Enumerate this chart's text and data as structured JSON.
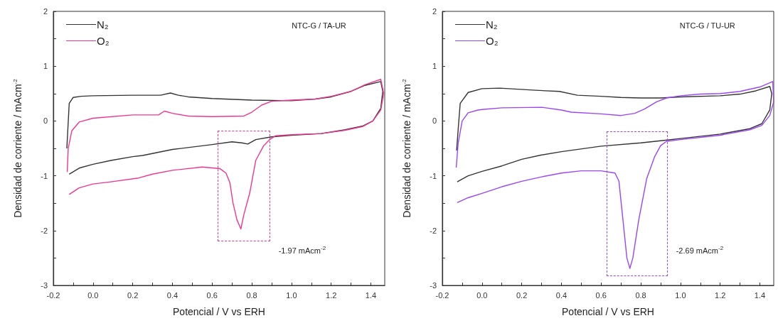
{
  "chart_data": [
    {
      "type": "line",
      "xlabel": "Potencial / V vs ERH",
      "ylabel": "Densidad de corriente / mAcm$^{-2}$",
      "xlim": [
        -0.2,
        1.47
      ],
      "ylim": [
        -3,
        2
      ],
      "xticks": [
        -0.2,
        {
          "value": -0.1,
          "label": null
        },
        {
          "value": 0,
          "label": "0.0"
        },
        {
          "value": 0.1,
          "label": null
        },
        0.2,
        {
          "value": 0.3,
          "label": null
        },
        0.4,
        {
          "value": 0.5,
          "label": null
        },
        0.6,
        {
          "value": 0.7,
          "label": null
        },
        0.8,
        {
          "value": 0.9,
          "label": null
        },
        {
          "value": 1,
          "label": "1.0"
        },
        {
          "value": 1.1,
          "label": null
        },
        1.2,
        {
          "value": 1.3,
          "label": null
        },
        1.4
      ],
      "yticks": [
        -3,
        {
          "value": -2.5,
          "label": null
        },
        -2,
        {
          "value": -1.5,
          "label": null
        },
        -1,
        {
          "value": -0.5,
          "label": null
        },
        0,
        {
          "value": 0.5,
          "label": null
        },
        1,
        {
          "value": 1.5,
          "label": null
        },
        2
      ],
      "grid": false,
      "legend": "top left",
      "marker": "none",
      "line_style": "solid",
      "annotations": [
        "NTC-G / TA-UR",
        "-1.97 mAcm$^{-2}$"
      ],
      "series": [
        {
          "name": "N₂",
          "color": "#333333",
          "x": [
            -0.132,
            -0.12,
            -0.1,
            -0.06,
            0.0,
            0.2,
            0.34,
            0.39,
            0.43,
            0.48,
            0.6,
            0.8,
            1.0,
            1.12,
            1.2,
            1.3,
            1.37,
            1.45,
            1.46,
            1.45,
            1.41,
            1.36,
            1.27,
            1.15,
            1.0,
            0.9,
            0.82,
            0.78,
            0.75,
            0.7,
            0.6,
            0.4,
            0.25,
            0.2,
            0.09,
            0.0,
            -0.07,
            -0.12
          ],
          "values": [
            -0.5,
            0.32,
            0.43,
            0.45,
            0.46,
            0.47,
            0.47,
            0.51,
            0.47,
            0.44,
            0.41,
            0.38,
            0.37,
            0.4,
            0.44,
            0.54,
            0.65,
            0.72,
            0.54,
            0.23,
            0.0,
            -0.09,
            -0.16,
            -0.23,
            -0.26,
            -0.29,
            -0.34,
            -0.42,
            -0.4,
            -0.38,
            -0.43,
            -0.52,
            -0.63,
            -0.65,
            -0.72,
            -0.79,
            -0.86,
            -0.97
          ]
        },
        {
          "name": "O₂",
          "color": "#f0368e",
          "x": [
            -0.13,
            -0.125,
            -0.107,
            -0.07,
            0.0,
            0.2,
            0.33,
            0.36,
            0.4,
            0.48,
            0.6,
            0.76,
            0.8,
            0.85,
            0.9,
            1.0,
            1.12,
            1.2,
            1.3,
            1.37,
            1.45,
            1.465,
            1.45,
            1.41,
            1.36,
            1.27,
            1.15,
            1.0,
            0.92,
            0.89,
            0.86,
            0.82,
            0.79,
            0.76,
            0.745,
            0.725,
            0.705,
            0.69,
            0.67,
            0.64,
            0.55,
            0.4,
            0.3,
            0.23,
            0.09,
            0.0,
            -0.07,
            -0.12
          ],
          "values": [
            -0.93,
            -0.5,
            -0.18,
            -0.02,
            0.05,
            0.11,
            0.11,
            0.18,
            0.14,
            0.09,
            0.08,
            0.09,
            0.16,
            0.29,
            0.36,
            0.38,
            0.4,
            0.45,
            0.54,
            0.66,
            0.76,
            0.5,
            0.2,
            0.0,
            -0.1,
            -0.17,
            -0.23,
            -0.25,
            -0.27,
            -0.34,
            -0.45,
            -0.72,
            -1.31,
            -1.71,
            -1.97,
            -1.8,
            -1.49,
            -1.13,
            -0.95,
            -0.87,
            -0.84,
            -0.9,
            -0.97,
            -1.04,
            -1.11,
            -1.15,
            -1.22,
            -1.34
          ]
        }
      ]
    },
    {
      "type": "line",
      "xlabel": "Potencial / V vs ERH",
      "ylabel": "Densidad de corriente / mAcm$^{-2}$",
      "xlim": [
        -0.2,
        1.47
      ],
      "ylim": [
        -3,
        2
      ],
      "xticks": [
        -0.2,
        {
          "value": -0.1,
          "label": null
        },
        {
          "value": 0,
          "label": "0.0"
        },
        {
          "value": 0.1,
          "label": null
        },
        0.2,
        {
          "value": 0.3,
          "label": null
        },
        0.4,
        {
          "value": 0.5,
          "label": null
        },
        0.6,
        {
          "value": 0.7,
          "label": null
        },
        0.8,
        {
          "value": 0.9,
          "label": null
        },
        {
          "value": 1,
          "label": "1.0"
        },
        {
          "value": 1.1,
          "label": null
        },
        1.2,
        {
          "value": 1.3,
          "label": null
        },
        1.4
      ],
      "yticks": [
        -3,
        {
          "value": -2.5,
          "label": null
        },
        -2,
        {
          "value": -1.5,
          "label": null
        },
        -1,
        {
          "value": -0.5,
          "label": null
        },
        0,
        {
          "value": 0.5,
          "label": null
        },
        1,
        {
          "value": 1.5,
          "label": null
        },
        2
      ],
      "grid": false,
      "legend": "top left",
      "marker": "none",
      "line_style": "solid",
      "annotations": [
        "NTC-G / TU-UR",
        "-2.69 mAcm$^{-2}$"
      ],
      "series": [
        {
          "name": "N₂",
          "color": "#333333",
          "x": [
            -0.128,
            -0.12,
            -0.11,
            -0.07,
            0.0,
            0.09,
            0.27,
            0.39,
            0.48,
            0.6,
            0.7,
            0.8,
            0.9,
            1.0,
            1.2,
            1.3,
            1.38,
            1.45,
            1.46,
            1.45,
            1.41,
            1.35,
            1.2,
            1.0,
            0.9,
            0.8,
            0.6,
            0.4,
            0.3,
            0.2,
            0.1,
            0.0,
            -0.07,
            -0.125
          ],
          "values": [
            -0.54,
            -0.14,
            0.32,
            0.52,
            0.59,
            0.6,
            0.56,
            0.54,
            0.47,
            0.45,
            0.43,
            0.42,
            0.42,
            0.44,
            0.46,
            0.49,
            0.55,
            0.63,
            0.5,
            0.2,
            -0.05,
            -0.14,
            -0.24,
            -0.32,
            -0.36,
            -0.4,
            -0.46,
            -0.56,
            -0.62,
            -0.7,
            -0.82,
            -0.92,
            -1.0,
            -1.11
          ]
        },
        {
          "name": "O₂",
          "color": "#9b45f5",
          "x": [
            -0.13,
            -0.12,
            -0.1,
            -0.07,
            -0.02,
            0.0,
            0.1,
            0.3,
            0.4,
            0.45,
            0.6,
            0.7,
            0.77,
            0.82,
            0.88,
            0.93,
            1.0,
            1.1,
            1.2,
            1.3,
            1.4,
            1.465,
            1.47,
            1.45,
            1.41,
            1.35,
            1.2,
            1.0,
            0.93,
            0.9,
            0.87,
            0.83,
            0.79,
            0.76,
            0.745,
            0.73,
            0.71,
            0.69,
            0.67,
            0.6,
            0.5,
            0.4,
            0.3,
            0.2,
            0.1,
            0.0,
            -0.07,
            -0.125
          ],
          "values": [
            -0.85,
            -0.4,
            0.0,
            0.15,
            0.2,
            0.21,
            0.24,
            0.25,
            0.2,
            0.16,
            0.13,
            0.1,
            0.14,
            0.22,
            0.35,
            0.42,
            0.46,
            0.49,
            0.5,
            0.54,
            0.62,
            0.72,
            0.35,
            0.1,
            -0.08,
            -0.16,
            -0.26,
            -0.34,
            -0.37,
            -0.45,
            -0.65,
            -1.05,
            -1.8,
            -2.5,
            -2.69,
            -2.5,
            -1.8,
            -1.1,
            -0.95,
            -0.91,
            -0.91,
            -0.95,
            -1.02,
            -1.1,
            -1.2,
            -1.32,
            -1.4,
            -1.49
          ]
        }
      ]
    }
  ]
}
